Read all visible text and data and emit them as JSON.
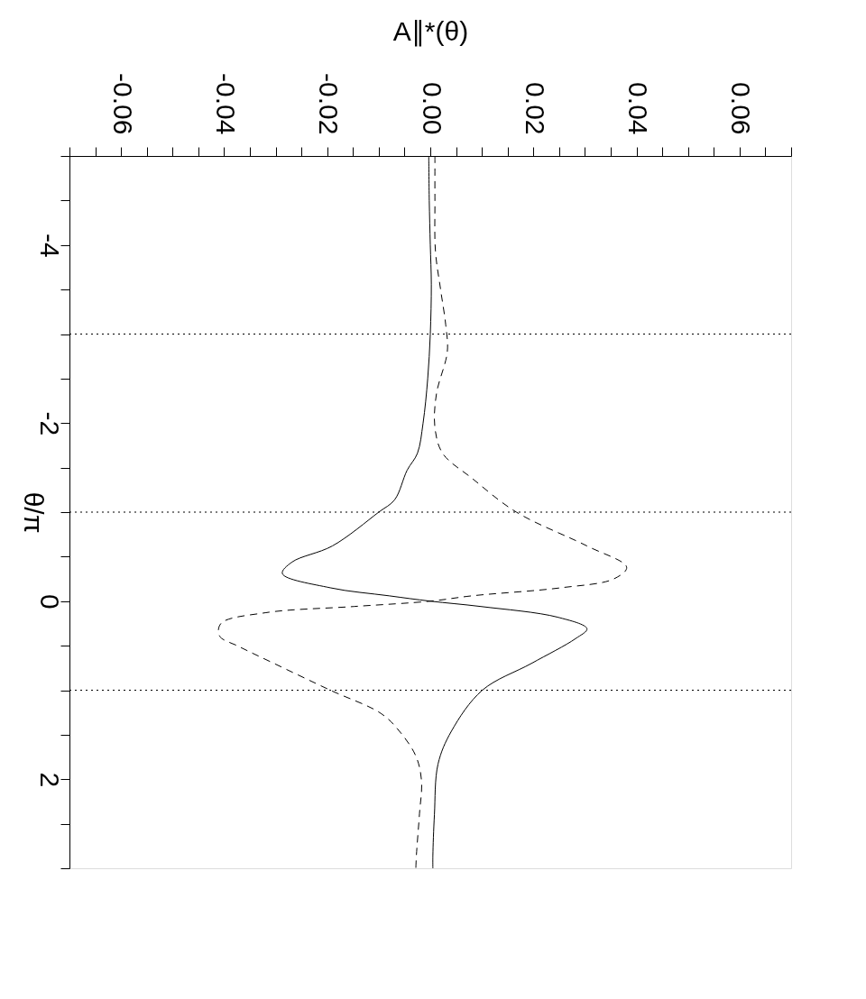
{
  "chart_data": {
    "type": "line",
    "xlabel": "A∥*(θ)",
    "ylabel": "θ/π",
    "ylim": [
      3,
      -5
    ],
    "yticks": [
      {
        "value": -5,
        "label": null
      },
      {
        "value": -4.5,
        "label": null
      },
      -4,
      {
        "value": -3.5,
        "label": null
      },
      {
        "value": -3,
        "label": null
      },
      {
        "value": -2.5,
        "label": null
      },
      -2,
      {
        "value": -1.5,
        "label": null
      },
      {
        "value": -1,
        "label": null
      },
      {
        "value": -0.5,
        "label": null
      },
      0,
      {
        "value": 0.5,
        "label": null
      },
      {
        "value": 1,
        "label": null
      },
      {
        "value": 1.5,
        "label": null
      },
      2,
      {
        "value": 2.5,
        "label": null
      },
      {
        "value": 3,
        "label": null
      }
    ],
    "xlim": [
      -0.07,
      0.07
    ],
    "xticks": [
      {
        "value": -0.07,
        "label": null
      },
      {
        "value": -0.065,
        "label": null
      },
      -0.06,
      {
        "value": -0.055,
        "label": null
      },
      {
        "value": -0.05,
        "label": null
      },
      {
        "value": -0.045,
        "label": null
      },
      -0.04,
      {
        "value": -0.035,
        "label": null
      },
      {
        "value": -0.03,
        "label": null
      },
      {
        "value": -0.025,
        "label": null
      },
      -0.02,
      {
        "value": -0.015,
        "label": null
      },
      {
        "value": -0.01,
        "label": null
      },
      {
        "value": -0.005,
        "label": null
      },
      {
        "value": 0,
        "label": "0.00"
      },
      {
        "value": 0.005,
        "label": null
      },
      {
        "value": 0.01,
        "label": null
      },
      {
        "value": 0.015,
        "label": null
      },
      0.02,
      {
        "value": 0.025,
        "label": null
      },
      {
        "value": 0.03,
        "label": null
      },
      {
        "value": 0.035,
        "label": null
      },
      0.04,
      {
        "value": 0.045,
        "label": null
      },
      {
        "value": 0.05,
        "label": null
      },
      {
        "value": 0.055,
        "label": null
      },
      0.06,
      {
        "value": 0.065,
        "label": null
      },
      {
        "value": 0.07,
        "label": null
      }
    ],
    "grid": false,
    "marker": "none",
    "series": [
      {
        "color": "#000000",
        "line_style": "solid",
        "values": [
          -5,
          -4.5,
          -4,
          -3.56,
          -3,
          -2.5,
          -2,
          -1.66,
          -1.47,
          -1.14,
          -1,
          -0.62,
          -0.44,
          -0.31,
          -0.15,
          -0.06,
          0,
          0.06,
          0.18,
          0.31,
          0.42,
          0.7,
          1,
          1.46,
          1.83,
          2.4,
          2.86,
          3
        ],
        "x": [
          -0.0003,
          -0.0002,
          0,
          0.0002,
          0,
          -0.0005,
          -0.0014,
          -0.0025,
          -0.0045,
          -0.0069,
          -0.01,
          -0.019,
          -0.0268,
          -0.0287,
          -0.0194,
          -0.008,
          0,
          0.0098,
          0.0247,
          0.0304,
          0.0282,
          0.0196,
          0.0101,
          0.0041,
          0.0015,
          0.0008,
          0.0005,
          0.0005
        ]
      },
      {
        "color": "#000000",
        "line_style": "dashed",
        "values": [
          -5,
          -4.5,
          -3.93,
          -3.5,
          -3.1,
          -2.8,
          -2.33,
          -1.95,
          -1.66,
          -1.38,
          -1,
          -0.62,
          -0.38,
          -0.25,
          -0.15,
          -0.06,
          0,
          0.06,
          0.13,
          0.25,
          0.39,
          0.51,
          0.7,
          1,
          1.26,
          1.46,
          1.74,
          2.02,
          2.39,
          2.86,
          3
        ],
        "x": [
          0.0009,
          0.0009,
          0.001,
          0.002,
          0.003,
          0.0033,
          0.0012,
          0.0009,
          0.0024,
          0.0081,
          0.0167,
          0.0304,
          0.0381,
          0.0356,
          0.0253,
          0.0081,
          0,
          -0.0148,
          -0.032,
          -0.0406,
          -0.0409,
          -0.0371,
          -0.0303,
          -0.0194,
          -0.0096,
          -0.006,
          -0.0028,
          -0.0017,
          -0.0021,
          -0.0027,
          -0.0028
        ]
      }
    ],
    "ref_lines": [
      {
        "axis": "y",
        "value": -3,
        "line_style": "dotted",
        "color": "#000000"
      },
      {
        "axis": "y",
        "value": -1,
        "line_style": "dotted",
        "color": "#000000"
      },
      {
        "axis": "y",
        "value": 1,
        "line_style": "dotted",
        "color": "#000000"
      }
    ]
  }
}
